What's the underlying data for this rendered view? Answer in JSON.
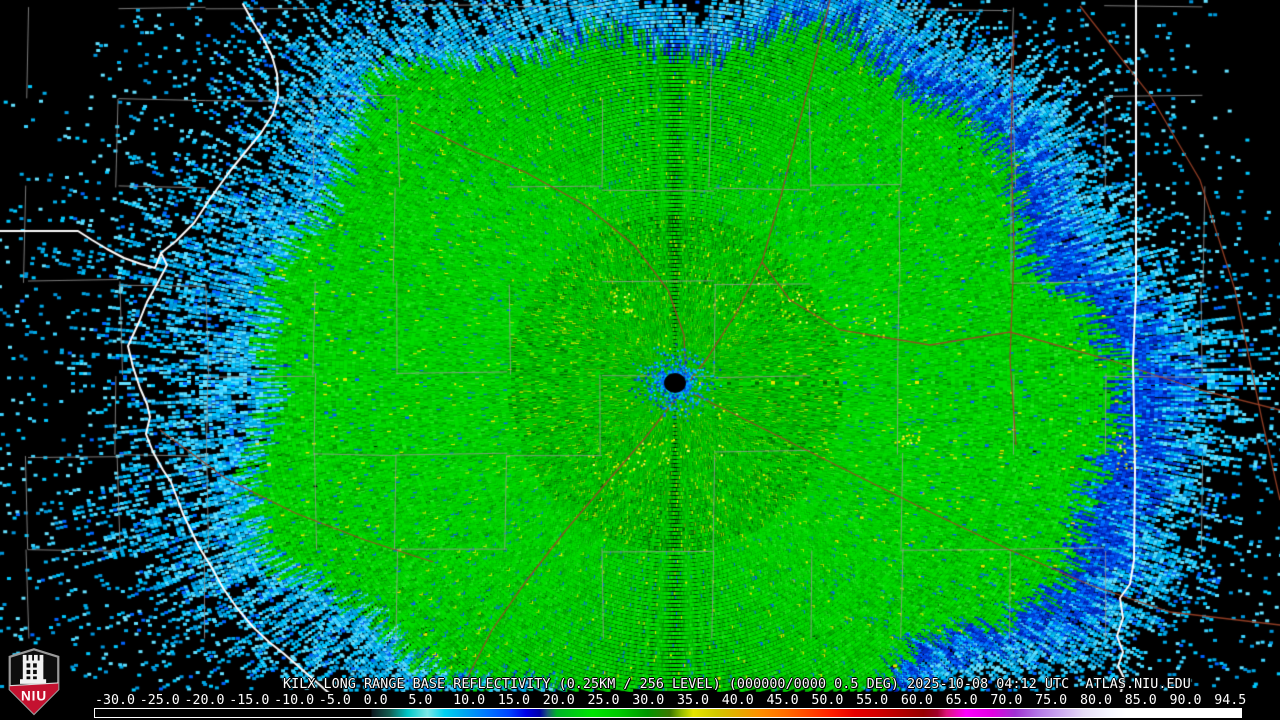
{
  "title_bar": {
    "text": "KILX LONG RANGE BASE REFLECTIVITY (0.25KM / 256 LEVEL) (000000/0000 0.5 DEG) 2025-10-08 04:12 UTC  ATLAS.NIU.EDU"
  },
  "radar_info": {
    "site": "KILX",
    "product": "LONG RANGE BASE REFLECTIVITY",
    "resolution": "0.25KM",
    "levels": "256 LEVEL",
    "volume": "000000/0000",
    "elevation": "0.5 DEG",
    "timestamp": "2025-10-08 04:12 UTC",
    "source": "ATLAS.NIU.EDU"
  },
  "logo": {
    "text": "NIU"
  },
  "colorbar": {
    "min": -30.0,
    "max": 94.5,
    "labels": [
      "-30.0",
      "-25.0",
      "-20.0",
      "-15.0",
      "-10.0",
      "-5.0",
      "0.0",
      "5.0",
      "10.0",
      "15.0",
      "20.0",
      "25.0",
      "30.0",
      "35.0",
      "40.0",
      "45.0",
      "50.0",
      "55.0",
      "60.0",
      "65.0",
      "70.0",
      "75.0",
      "80.0",
      "85.0",
      "90.0",
      "94.5"
    ],
    "stops": [
      [
        0.0,
        "#000000"
      ],
      [
        0.2406,
        "#000000"
      ],
      [
        0.242,
        "#0c1a20"
      ],
      [
        0.257,
        "#135c50"
      ],
      [
        0.273,
        "#00c8c8"
      ],
      [
        0.29,
        "#7ce8e8"
      ],
      [
        0.305,
        "#00d2f0"
      ],
      [
        0.321,
        "#00aaf0"
      ],
      [
        0.341,
        "#0078ff"
      ],
      [
        0.361,
        "#0046ff"
      ],
      [
        0.376,
        "#0000e6"
      ],
      [
        0.388,
        "#0000aa"
      ],
      [
        0.395,
        "#1e5a78"
      ],
      [
        0.403,
        "#00b428"
      ],
      [
        0.434,
        "#00e400"
      ],
      [
        0.458,
        "#00c800"
      ],
      [
        0.482,
        "#009600"
      ],
      [
        0.502,
        "#3c7800"
      ],
      [
        0.512,
        "#96be00"
      ],
      [
        0.522,
        "#e6e600"
      ],
      [
        0.542,
        "#d2c800"
      ],
      [
        0.562,
        "#e6aa00"
      ],
      [
        0.582,
        "#ff8c00"
      ],
      [
        0.602,
        "#ff6e00"
      ],
      [
        0.623,
        "#ff4600"
      ],
      [
        0.643,
        "#ff1e00"
      ],
      [
        0.663,
        "#e60000"
      ],
      [
        0.683,
        "#d20000"
      ],
      [
        0.703,
        "#b40000"
      ],
      [
        0.723,
        "#960000"
      ],
      [
        0.735,
        "#a00028"
      ],
      [
        0.743,
        "#dc1478"
      ],
      [
        0.76,
        "#ff00ff"
      ],
      [
        0.783,
        "#e100e1"
      ],
      [
        0.803,
        "#a032d2"
      ],
      [
        0.823,
        "#b478e6"
      ],
      [
        0.843,
        "#cdaaf0"
      ],
      [
        0.863,
        "#e6dcf5"
      ],
      [
        0.884,
        "#f5f5ff"
      ],
      [
        0.9,
        "#ffffff"
      ],
      [
        1.0,
        "#ffffff"
      ]
    ]
  },
  "palette": {
    "greens": [
      "#00dc00",
      "#00c800",
      "#00b400",
      "#009b00",
      "#22e422"
    ],
    "blues": [
      "#0046e6",
      "#0032c8",
      "#0064ff",
      "#001eb4",
      "#0082ff"
    ],
    "cyans": [
      "#00c8ff",
      "#3cd2ff",
      "#00aae6",
      "#0096dc",
      "#64e0ff"
    ],
    "yellow": "#e6e600",
    "dark_green": "#006400"
  },
  "map_colors": {
    "county": "#989898",
    "state": "#ffffff",
    "highway": "#a04428",
    "background": "#000000",
    "label_text": "#ffffff",
    "logo_red": "#c41230"
  }
}
